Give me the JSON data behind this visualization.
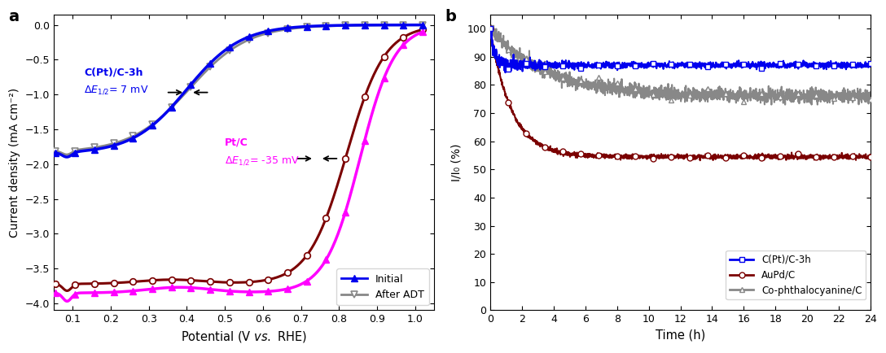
{
  "panel_a": {
    "xlabel": "Potential (V νs. RHE)",
    "ylabel": "Current density (mA cm⁻²)",
    "xlim": [
      0.05,
      1.05
    ],
    "ylim": [
      -4.1,
      0.15
    ],
    "xticks": [
      0.1,
      0.2,
      0.3,
      0.4,
      0.5,
      0.6,
      0.7,
      0.8,
      0.9,
      1.0
    ],
    "yticks": [
      0.0,
      -0.5,
      -1.0,
      -1.5,
      -2.0,
      -2.5,
      -3.0,
      -3.5,
      -4.0
    ],
    "cpt_initial_color": "#0000EE",
    "cpt_adt_color": "#888888",
    "ptc_initial_color": "#FF00FF",
    "ptc_adt_color": "#7B0000",
    "legend_initial": "Initial",
    "legend_adt": "After ADT"
  },
  "panel_b": {
    "xlabel": "Time (h)",
    "ylabel": "I/I₀ (%)",
    "xlim": [
      0,
      24
    ],
    "ylim": [
      0,
      105
    ],
    "xticks": [
      0,
      2,
      4,
      6,
      8,
      10,
      12,
      14,
      16,
      18,
      20,
      22,
      24
    ],
    "yticks": [
      0,
      10,
      20,
      30,
      40,
      50,
      60,
      70,
      80,
      90,
      100
    ],
    "cpt_color": "#0000EE",
    "aupd_color": "#7B0000",
    "cophthal_color": "#888888",
    "legend_cpt": "C(Pt)/C-3h",
    "legend_aupd": "AuPd/C",
    "legend_cophthal": "Co-phthalocyanine/C"
  }
}
